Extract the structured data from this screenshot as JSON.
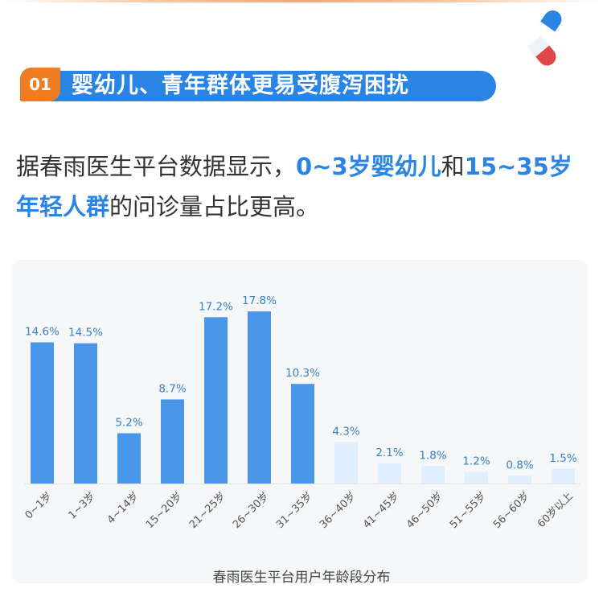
{
  "section": {
    "number": "01",
    "title": "婴幼儿、青年群体更易受腹泻困扰"
  },
  "body": {
    "part1": "据春雨医生平台数据显示，",
    "highlight1": "0~3岁婴幼儿",
    "part2": "和",
    "highlight2": "15~35岁年轻人群",
    "part3": "的问诊量占比更高。"
  },
  "colors": {
    "accent": "#2a84e3",
    "badge": "#f07d24",
    "bar_high": "#4a97ea",
    "bar_low": "#e0effd"
  },
  "chart_data": {
    "type": "bar",
    "title": "春雨医生平台用户年龄段分布",
    "categories": [
      "0~1岁",
      "1~3岁",
      "4~14岁",
      "15~20岁",
      "21~25岁",
      "26~30岁",
      "31~35岁",
      "36~40岁",
      "41~45岁",
      "46~50岁",
      "51~55岁",
      "56~60岁",
      "60岁以上"
    ],
    "values": [
      14.6,
      14.5,
      5.2,
      8.7,
      17.2,
      17.8,
      10.3,
      4.3,
      2.1,
      1.8,
      1.2,
      0.8,
      1.5
    ],
    "value_labels": [
      "14.6%",
      "14.5%",
      "5.2%",
      "8.7%",
      "17.2%",
      "17.8%",
      "10.3%",
      "4.3%",
      "2.1%",
      "1.8%",
      "1.2%",
      "0.8%",
      "1.5%"
    ],
    "highlighted": [
      true,
      true,
      true,
      true,
      true,
      true,
      true,
      false,
      false,
      false,
      false,
      false,
      false
    ],
    "unit": "%"
  }
}
